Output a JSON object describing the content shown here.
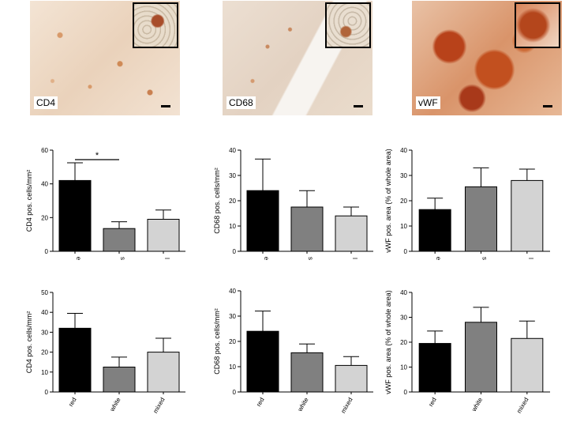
{
  "images": [
    {
      "label": "CD4",
      "style": "cd4"
    },
    {
      "label": "CD68",
      "style": "cd68"
    },
    {
      "label": "vWF",
      "style": "vwf"
    }
  ],
  "colors": {
    "black": "#000000",
    "dark_grey": "#808080",
    "light_grey": "#d3d3d3"
  },
  "chart_data": [
    {
      "type": "bar",
      "categories": [
        "e",
        "s",
        "l"
      ],
      "values": [
        42,
        13.5,
        19
      ],
      "errors": [
        10.5,
        4,
        5.5
      ],
      "ylabel": "CD4 pos. cells/mm²",
      "ylim": [
        0,
        60
      ],
      "yticks": [
        0,
        20,
        40,
        60
      ],
      "significance": [
        {
          "from": "e",
          "to": "s",
          "label": "*"
        }
      ]
    },
    {
      "type": "bar",
      "categories": [
        "e",
        "s",
        "l"
      ],
      "values": [
        24,
        17.5,
        14
      ],
      "errors": [
        12.5,
        6.5,
        3.5
      ],
      "ylabel": "CD68 pos. cells/mm²",
      "ylim": [
        0,
        40
      ],
      "yticks": [
        0,
        10,
        20,
        30,
        40
      ]
    },
    {
      "type": "bar",
      "categories": [
        "e",
        "s",
        "l"
      ],
      "values": [
        16.5,
        25.5,
        28
      ],
      "errors": [
        4.5,
        7.5,
        4.5
      ],
      "ylabel": "vWF pos. area (% of whole area)",
      "ylim": [
        0,
        40
      ],
      "yticks": [
        0,
        10,
        20,
        30,
        40
      ]
    },
    {
      "type": "bar",
      "categories": [
        "red",
        "white",
        "mixed"
      ],
      "values": [
        32,
        12.5,
        20
      ],
      "errors": [
        7.5,
        5,
        7
      ],
      "ylabel": "CD4 pos. cells/mm²",
      "ylim": [
        0,
        50
      ],
      "yticks": [
        0,
        10,
        20,
        30,
        40,
        50
      ]
    },
    {
      "type": "bar",
      "categories": [
        "red",
        "white",
        "mixed"
      ],
      "values": [
        24,
        15.5,
        10.5
      ],
      "errors": [
        8,
        3.5,
        3.5
      ],
      "ylabel": "CD68 pos. cells/mm²",
      "ylim": [
        0,
        40
      ],
      "yticks": [
        0,
        10,
        20,
        30,
        40
      ]
    },
    {
      "type": "bar",
      "categories": [
        "red",
        "white",
        "mixed"
      ],
      "values": [
        19.5,
        28,
        21.5
      ],
      "errors": [
        5,
        6,
        7
      ],
      "ylabel": "vWF pos. area (% of whole area)",
      "ylim": [
        0,
        40
      ],
      "yticks": [
        0,
        10,
        20,
        30,
        40
      ]
    }
  ]
}
